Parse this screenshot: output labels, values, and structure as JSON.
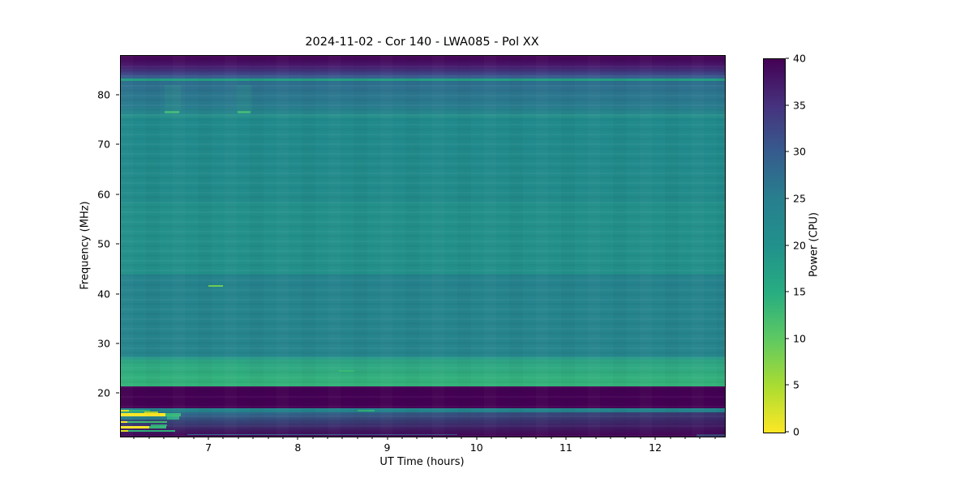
{
  "chart_data": {
    "type": "heatmap",
    "title": "2024-11-02 - Cor 140 - LWA085 - Pol XX",
    "xlabel": "UT Time (hours)",
    "ylabel": "Frequency (MHz)",
    "colorbar_label": "Power (CPU)",
    "x_range": [
      6.01,
      12.77
    ],
    "y_range": [
      11.4,
      88.0
    ],
    "x_ticks": [
      7,
      8,
      9,
      10,
      11,
      12
    ],
    "x_minor_step": 0.166667,
    "y_ticks": [
      20,
      30,
      40,
      50,
      60,
      70,
      80
    ],
    "colorbar_range": [
      0,
      40
    ],
    "colorbar_ticks": [
      0,
      5,
      10,
      15,
      20,
      25,
      30,
      35,
      40
    ],
    "colormap": "viridis",
    "colormap_stops": [
      {
        "v": 0,
        "c": "#440154"
      },
      {
        "v": 5,
        "c": "#46327e"
      },
      {
        "v": 10,
        "c": "#365c8d"
      },
      {
        "v": 15,
        "c": "#277f8e"
      },
      {
        "v": 20,
        "c": "#21918c"
      },
      {
        "v": 25,
        "c": "#27ad81"
      },
      {
        "v": 30,
        "c": "#5ec962"
      },
      {
        "v": 35,
        "c": "#aadc32"
      },
      {
        "v": 40,
        "c": "#fde725"
      }
    ],
    "background_power_cpu": 19,
    "bands": [
      {
        "f0": 88.0,
        "f1": 86.1,
        "c0": "#440154",
        "c1": "#48176b",
        "power": 0
      },
      {
        "f0": 86.1,
        "f1": 84.2,
        "c0": "#48176b",
        "c1": "#3e4989",
        "power": 4
      },
      {
        "f0": 84.2,
        "f1": 83.45,
        "c0": "#3e4989",
        "c1": "#31688e",
        "power": 9
      },
      {
        "f0": 83.45,
        "f1": 83.0,
        "c0": "#27a087",
        "c1": "#27a087",
        "power": 23
      },
      {
        "f0": 83.0,
        "f1": 82.2,
        "c0": "#2d6e8e",
        "c1": "#2d6e8e",
        "power": 13
      },
      {
        "f0": 82.2,
        "f1": 77.6,
        "c0": "#2e708e",
        "c1": "#287d8e",
        "power": 15
      },
      {
        "f0": 77.6,
        "f1": 76.2,
        "c0": "#27818e",
        "c1": "#26868d",
        "power": 16
      },
      {
        "f0": 76.2,
        "f1": 75.4,
        "c0": "#268f8b",
        "c1": "#268f8b",
        "power": 19
      },
      {
        "f0": 75.4,
        "f1": 58.5,
        "c0": "#218a8c",
        "c1": "#228b8b",
        "power": 19
      },
      {
        "f0": 58.5,
        "f1": 44.0,
        "c0": "#23908a",
        "c1": "#23908a",
        "power": 20
      },
      {
        "f0": 44.0,
        "f1": 27.6,
        "c0": "#25838d",
        "c1": "#26858d",
        "power": 17
      },
      {
        "f0": 27.6,
        "f1": 26.9,
        "c0": "#27938b",
        "c1": "#2a9d87",
        "power": 21
      },
      {
        "f0": 26.9,
        "f1": 21.5,
        "c0": "#2da486",
        "c1": "#35b579",
        "power": 25
      },
      {
        "f0": 21.5,
        "f1": 17.15,
        "c0": "#440154",
        "c1": "#440154",
        "power": 0
      },
      {
        "f0": 17.15,
        "f1": 16.35,
        "c0": "#23898d",
        "c1": "#25848e",
        "power": 18
      },
      {
        "f0": 16.35,
        "f1": 11.4,
        "c0": "#2e6e8e",
        "c1": "#440154",
        "power": 7
      }
    ],
    "bottom_fade": {
      "f0": 16.35,
      "f1": 11.4,
      "color_rgb": "68,1,84",
      "max_opacity": 0.5,
      "start_frac": 0.2
    },
    "features": [
      {
        "t0": 6.5,
        "t1": 6.68,
        "f0": 82.2,
        "f1": 76.6,
        "c": "#2e9a88",
        "o": 0.25,
        "note": "faint column"
      },
      {
        "t0": 7.31,
        "t1": 7.48,
        "f0": 82.2,
        "f1": 76.6,
        "c": "#2e9a88",
        "o": 0.25,
        "note": "faint column"
      },
      {
        "t0": 6.5,
        "t1": 6.66,
        "f0": 76.95,
        "f1": 76.4,
        "c": "#41b67b",
        "o": 1,
        "note": "bright dash 76.5 MHz"
      },
      {
        "t0": 7.32,
        "t1": 7.46,
        "f0": 76.95,
        "f1": 76.4,
        "c": "#41b67b",
        "o": 1,
        "note": "bright dash 76.5 MHz"
      },
      {
        "t0": 6.99,
        "t1": 7.15,
        "f0": 41.9,
        "f1": 41.55,
        "c": "#70cf57",
        "o": 1,
        "note": "bright dash 42 MHz"
      },
      {
        "t0": 8.45,
        "t1": 8.62,
        "f0": 24.75,
        "f1": 24.45,
        "c": "#3cbc74",
        "o": 0.9
      },
      {
        "t0": 6.01,
        "t1": 7.4,
        "f0": 26.5,
        "f1": 21.6,
        "c": "#31b57c",
        "o": 0.25,
        "note": "brighter left edge of green band"
      },
      {
        "t0": 8.66,
        "t1": 8.85,
        "f0": 16.78,
        "f1": 16.5,
        "c": "#35b779",
        "o": 0.9
      },
      {
        "t0": 6.01,
        "t1": 6.1,
        "f0": 16.75,
        "f1": 16.42,
        "c": "#e2e41e",
        "o": 1
      },
      {
        "t0": 6.1,
        "t1": 6.34,
        "f0": 16.75,
        "f1": 16.42,
        "c": "#35b779",
        "o": 1
      },
      {
        "t0": 6.01,
        "t1": 6.27,
        "f0": 16.42,
        "f1": 16.1,
        "c": "#31a885",
        "o": 0.9
      },
      {
        "t0": 6.27,
        "t1": 6.43,
        "f0": 16.42,
        "f1": 16.1,
        "c": "#c4de26",
        "o": 0.9
      },
      {
        "t0": 6.01,
        "t1": 6.51,
        "f0": 16.1,
        "f1": 15.5,
        "c": "#fde725",
        "o": 1,
        "note": "strong RFI line ~16 MHz"
      },
      {
        "t0": 6.51,
        "t1": 6.68,
        "f0": 16.1,
        "f1": 15.5,
        "c": "#35b779",
        "o": 1
      },
      {
        "t0": 6.01,
        "t1": 6.53,
        "f0": 15.5,
        "f1": 14.9,
        "c": "#27808d",
        "o": 0.9
      },
      {
        "t0": 6.53,
        "t1": 6.66,
        "f0": 15.4,
        "f1": 14.9,
        "c": "#2fa885",
        "o": 1
      },
      {
        "t0": 6.01,
        "t1": 6.08,
        "f0": 14.45,
        "f1": 14.1,
        "c": "#fde725",
        "o": 1
      },
      {
        "t0": 6.08,
        "t1": 6.53,
        "f0": 14.45,
        "f1": 14.1,
        "c": "#40bc72",
        "o": 1
      },
      {
        "t0": 6.35,
        "t1": 6.53,
        "f0": 13.9,
        "f1": 13.55,
        "c": "#31b57c",
        "o": 0.9
      },
      {
        "t0": 6.01,
        "t1": 6.33,
        "f0": 13.45,
        "f1": 13.1,
        "c": "#fde725",
        "o": 1
      },
      {
        "t0": 6.33,
        "t1": 6.52,
        "f0": 13.45,
        "f1": 13.1,
        "c": "#35b779",
        "o": 1
      },
      {
        "t0": 6.01,
        "t1": 6.09,
        "f0": 12.75,
        "f1": 12.4,
        "c": "#e9e51b",
        "o": 1
      },
      {
        "t0": 6.09,
        "t1": 6.62,
        "f0": 12.75,
        "f1": 12.4,
        "c": "#2fb47c",
        "o": 1
      },
      {
        "t0": 6.75,
        "t1": 9.78,
        "f0": 11.95,
        "f1": 11.65,
        "c": "#2e6d8e",
        "o": 1
      },
      {
        "t0": 12.45,
        "t1": 12.77,
        "f0": 11.85,
        "f1": 11.4,
        "c": "#26818e",
        "o": 0.9
      }
    ]
  }
}
